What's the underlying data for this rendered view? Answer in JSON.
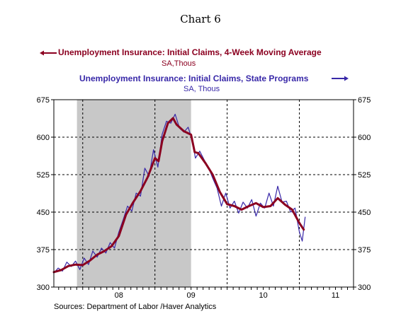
{
  "chart_data": {
    "type": "line",
    "title": "Chart 6",
    "source": "Sources:  Department of Labor /Haver Analytics",
    "ylim": [
      300,
      675
    ],
    "yticks": [
      300,
      375,
      450,
      525,
      600,
      675
    ],
    "ytick_labels": [
      "300",
      "375",
      "450",
      "525",
      "600",
      "675"
    ],
    "xlim": [
      2007.6,
      2011.75
    ],
    "x_labels": [
      {
        "label": "08",
        "x": 2008.5
      },
      {
        "label": "09",
        "x": 2009.5
      },
      {
        "label": "10",
        "x": 2010.5
      },
      {
        "label": "11",
        "x": 2011.5
      }
    ],
    "vertical_grid_x": [
      2008.0,
      2009.0,
      2010.0,
      2011.0
    ],
    "recession_shading": [
      2007.92,
      2009.5
    ],
    "grid": true,
    "series": [
      {
        "name": "Unemployment Insurance: Initial Claims, 4-Week Moving Average",
        "units": "SA,Thous",
        "axis_side": "left",
        "color": "#8b0020",
        "x": [
          2007.6,
          2007.7,
          2007.8,
          2007.9,
          2008.0,
          2008.1,
          2008.2,
          2008.3,
          2008.4,
          2008.5,
          2008.6,
          2008.7,
          2008.8,
          2008.9,
          2009.0,
          2009.05,
          2009.1,
          2009.18,
          2009.25,
          2009.3,
          2009.4,
          2009.5,
          2009.55,
          2009.6,
          2009.7,
          2009.8,
          2009.9,
          2010.0,
          2010.1,
          2010.2,
          2010.3,
          2010.4,
          2010.5,
          2010.6,
          2010.7,
          2010.8,
          2010.9,
          2011.0,
          2011.06
        ],
        "values": [
          330,
          334,
          342,
          345,
          344,
          353,
          365,
          372,
          382,
          402,
          445,
          470,
          492,
          520,
          558,
          552,
          592,
          628,
          638,
          625,
          612,
          605,
          570,
          568,
          548,
          525,
          490,
          466,
          462,
          455,
          462,
          468,
          460,
          462,
          478,
          465,
          455,
          428,
          415
        ]
      },
      {
        "name": "Unemployment Insurance: Initial Claims, State Programs",
        "units": "SA, Thous",
        "axis_side": "right",
        "color": "#3828a8",
        "x": [
          2007.6,
          2007.66,
          2007.72,
          2007.78,
          2007.84,
          2007.9,
          2007.96,
          2008.02,
          2008.08,
          2008.14,
          2008.2,
          2008.26,
          2008.32,
          2008.38,
          2008.44,
          2008.5,
          2008.56,
          2008.62,
          2008.68,
          2008.74,
          2008.8,
          2008.86,
          2008.92,
          2008.98,
          2009.04,
          2009.1,
          2009.16,
          2009.22,
          2009.28,
          2009.34,
          2009.4,
          2009.46,
          2009.52,
          2009.56,
          2009.62,
          2009.68,
          2009.74,
          2009.8,
          2009.86,
          2009.92,
          2009.98,
          2010.04,
          2010.1,
          2010.16,
          2010.22,
          2010.28,
          2010.34,
          2010.4,
          2010.46,
          2010.52,
          2010.58,
          2010.64,
          2010.7,
          2010.76,
          2010.82,
          2010.88,
          2010.94,
          2011.0,
          2011.04,
          2011.08
        ],
        "values": [
          328,
          338,
          332,
          350,
          341,
          352,
          335,
          358,
          345,
          372,
          360,
          378,
          368,
          389,
          378,
          410,
          435,
          462,
          452,
          488,
          482,
          538,
          522,
          575,
          540,
          606,
          632,
          628,
          646,
          618,
          610,
          620,
          592,
          558,
          572,
          555,
          540,
          518,
          498,
          462,
          488,
          458,
          472,
          448,
          470,
          458,
          475,
          442,
          468,
          458,
          488,
          462,
          502,
          470,
          472,
          450,
          458,
          410,
          392,
          440
        ]
      }
    ]
  },
  "legend": {
    "left_label": "Unemployment Insurance: Initial Claims, 4-Week Moving Average",
    "left_units": "SA,Thous",
    "right_label": "Unemployment Insurance: Initial Claims, State Programs",
    "right_units": "SA, Thous",
    "left_color": "#8b0020",
    "right_color": "#3828a8"
  }
}
